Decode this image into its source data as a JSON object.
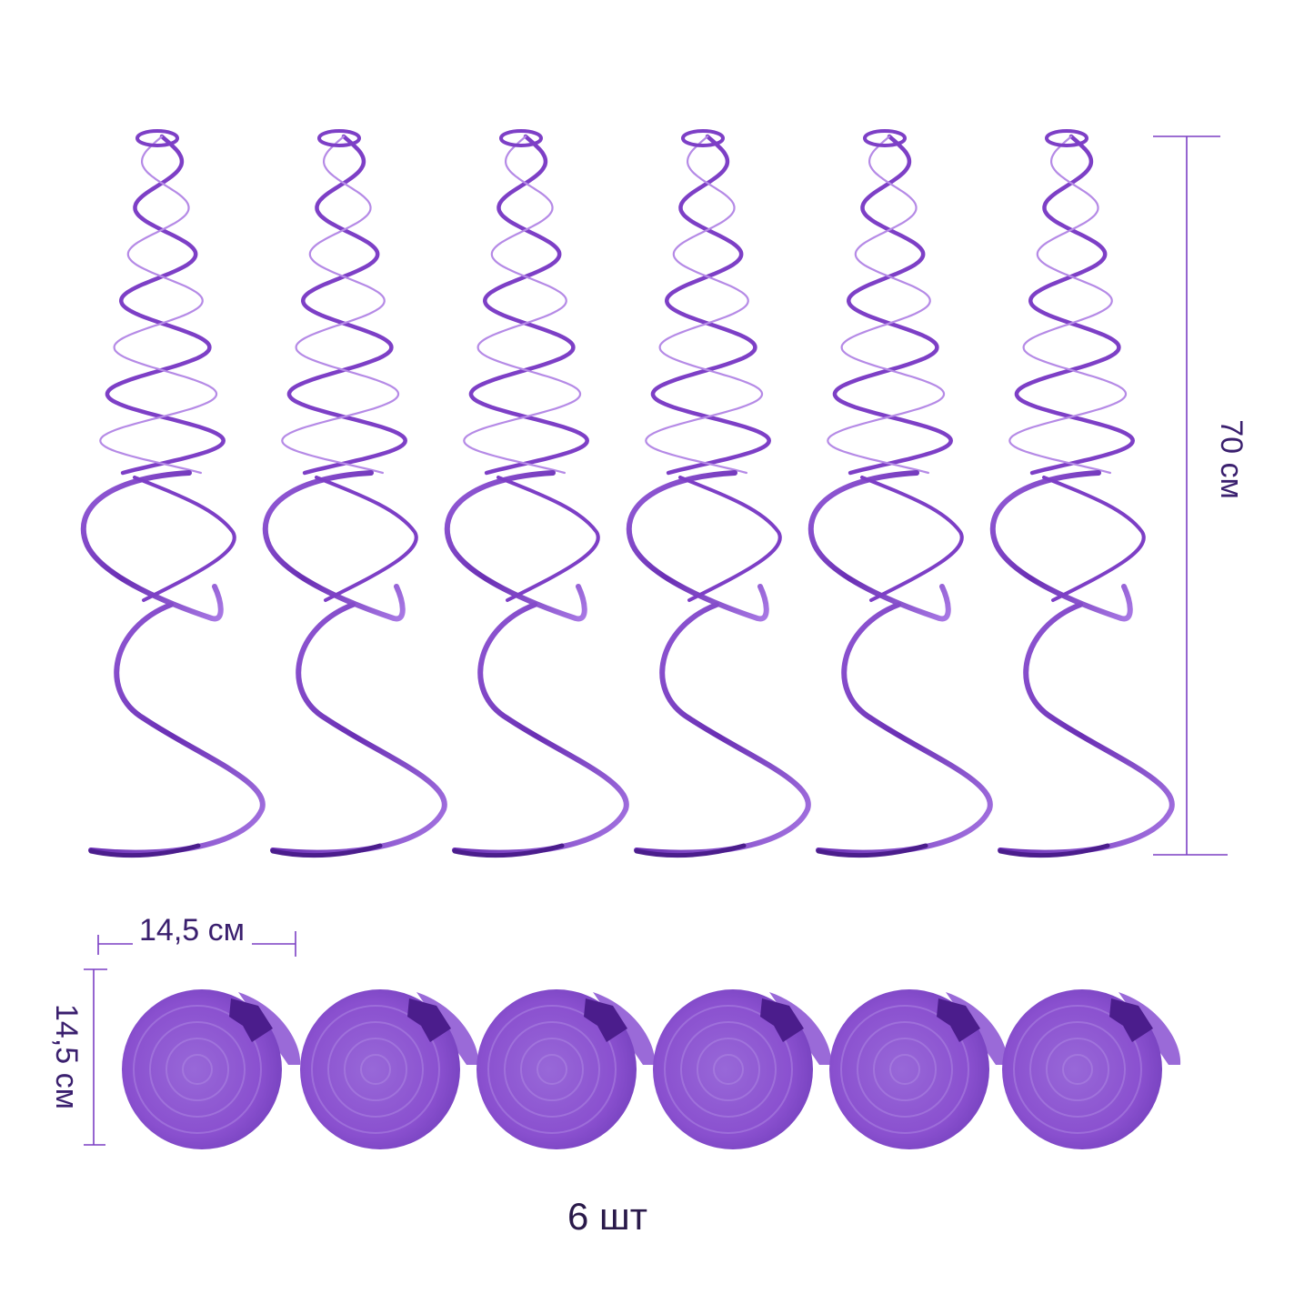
{
  "product": {
    "item_count": 6,
    "quantity_label": "6 шт",
    "spiral_length_label": "70 см",
    "disc_width_label": "14,5 см",
    "disc_height_label": "14,5 см"
  },
  "colors": {
    "ribbon": "#7d3fc6",
    "ribbon_dark": "#4b1d8c",
    "ribbon_light": "#b58ae6",
    "disc": "#8a52cf",
    "dimension_line": "#7b3fc4",
    "text": "#2a1a4a"
  }
}
